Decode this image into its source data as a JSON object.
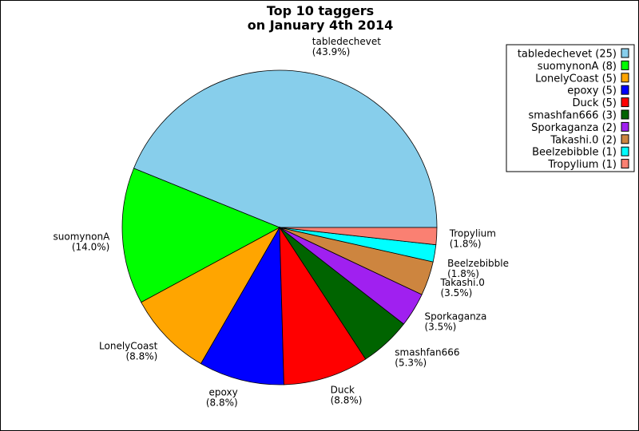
{
  "chart_data": {
    "type": "pie",
    "title": "Top 10 taggers",
    "subtitle": "on January 4th 2014",
    "legend_position": "top-right",
    "slices": [
      {
        "name": "tabledechevet",
        "value": 25,
        "percent": "43.9%",
        "color": "#87CEEB",
        "legend": "tabledechevet (25)"
      },
      {
        "name": "suomynonA",
        "value": 8,
        "percent": "14.0%",
        "color": "#00FF00",
        "legend": "suomynonA (8)"
      },
      {
        "name": "LonelyCoast",
        "value": 5,
        "percent": "8.8%",
        "color": "#FFA500",
        "legend": "LonelyCoast (5)"
      },
      {
        "name": "epoxy",
        "value": 5,
        "percent": "8.8%",
        "color": "#0000FF",
        "legend": "epoxy (5)"
      },
      {
        "name": "Duck",
        "value": 5,
        "percent": "8.8%",
        "color": "#FF0000",
        "legend": "Duck (5)"
      },
      {
        "name": "smashfan666",
        "value": 3,
        "percent": "5.3%",
        "color": "#006400",
        "legend": "smashfan666 (3)"
      },
      {
        "name": "Sporkaganza",
        "value": 2,
        "percent": "3.5%",
        "color": "#A020F0",
        "legend": "Sporkaganza (2)"
      },
      {
        "name": "Takashi.0",
        "value": 2,
        "percent": "3.5%",
        "color": "#CD853F",
        "legend": "Takashi.0 (2)"
      },
      {
        "name": "Beelzebibble",
        "value": 1,
        "percent": "1.8%",
        "color": "#00FFFF",
        "legend": "Beelzebibble (1)"
      },
      {
        "name": "Tropylium",
        "value": 1,
        "percent": "1.8%",
        "color": "#FA8072",
        "legend": "Tropylium (1)"
      }
    ]
  }
}
